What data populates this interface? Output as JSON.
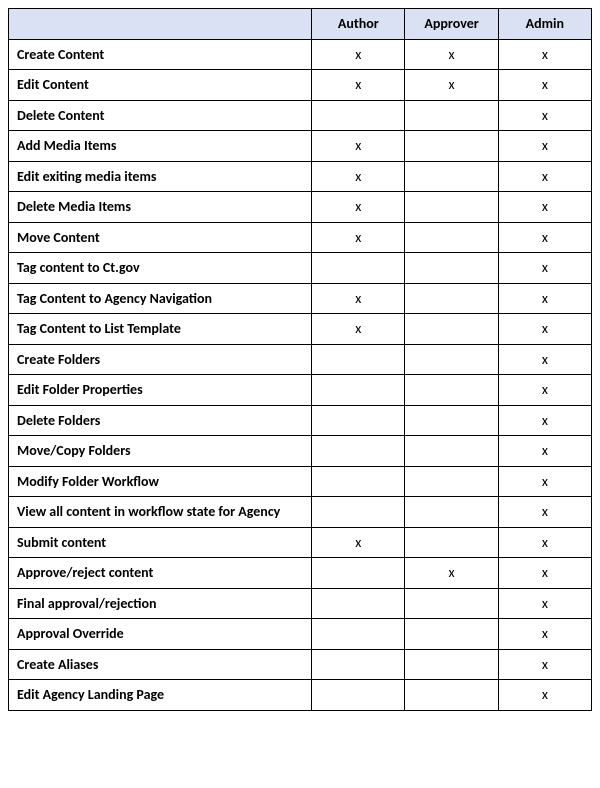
{
  "table": {
    "type": "table",
    "header_bg": "#d9e1f2",
    "border_color": "#000000",
    "mark": "x",
    "label_fontweight": 700,
    "header_fontweight": 700,
    "cell_fontsize_pt": 11,
    "columns": [
      "",
      "Author",
      "Approver",
      "Admin"
    ],
    "column_widths_pct": [
      52,
      16,
      16,
      16
    ],
    "rows": [
      {
        "label": "Create Content",
        "author": true,
        "approver": true,
        "admin": true
      },
      {
        "label": "Edit Content",
        "author": true,
        "approver": true,
        "admin": true
      },
      {
        "label": "Delete Content",
        "author": false,
        "approver": false,
        "admin": true
      },
      {
        "label": "Add Media Items",
        "author": true,
        "approver": false,
        "admin": true
      },
      {
        "label": "Edit exiting media items",
        "author": true,
        "approver": false,
        "admin": true
      },
      {
        "label": "Delete Media Items",
        "author": true,
        "approver": false,
        "admin": true
      },
      {
        "label": "Move Content",
        "author": true,
        "approver": false,
        "admin": true
      },
      {
        "label": "Tag content to Ct.gov",
        "author": false,
        "approver": false,
        "admin": true
      },
      {
        "label": "Tag Content to Agency Navigation",
        "author": true,
        "approver": false,
        "admin": true
      },
      {
        "label": "Tag Content to List Template",
        "author": true,
        "approver": false,
        "admin": true
      },
      {
        "label": "Create Folders",
        "author": false,
        "approver": false,
        "admin": true
      },
      {
        "label": "Edit Folder Properties",
        "author": false,
        "approver": false,
        "admin": true
      },
      {
        "label": "Delete Folders",
        "author": false,
        "approver": false,
        "admin": true
      },
      {
        "label": "Move/Copy Folders",
        "author": false,
        "approver": false,
        "admin": true
      },
      {
        "label": "Modify Folder Workflow",
        "author": false,
        "approver": false,
        "admin": true
      },
      {
        "label": "View all content in workflow state for Agency",
        "author": false,
        "approver": false,
        "admin": true
      },
      {
        "label": "Submit content",
        "author": true,
        "approver": false,
        "admin": true
      },
      {
        "label": "Approve/reject content",
        "author": false,
        "approver": true,
        "admin": true
      },
      {
        "label": "Final approval/rejection",
        "author": false,
        "approver": false,
        "admin": true
      },
      {
        "label": "Approval Override",
        "author": false,
        "approver": false,
        "admin": true
      },
      {
        "label": "Create Aliases",
        "author": false,
        "approver": false,
        "admin": true
      },
      {
        "label": "Edit Agency Landing Page",
        "author": false,
        "approver": false,
        "admin": true
      }
    ]
  }
}
